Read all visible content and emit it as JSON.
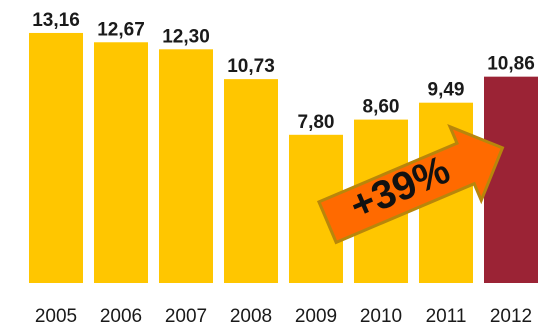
{
  "chart_data": {
    "type": "bar",
    "categories": [
      "2005",
      "2006",
      "2007",
      "2008",
      "2009",
      "2010",
      "2011",
      "2012"
    ],
    "values": [
      13.16,
      12.67,
      12.3,
      10.73,
      7.8,
      8.6,
      9.49,
      10.86
    ],
    "value_labels": [
      "13,16",
      "12,67",
      "12,30",
      "10,73",
      "7,80",
      "8,60",
      "9,49",
      "10,86"
    ],
    "highlight_index": 7,
    "colors": {
      "bar": "#FFC600",
      "highlight": "#9B2335",
      "arrow": "#FF6A00",
      "arrow_border": "#B8860B"
    },
    "annotation": "+39%",
    "ylim": [
      0,
      14
    ],
    "grid": false,
    "legend": "none"
  }
}
